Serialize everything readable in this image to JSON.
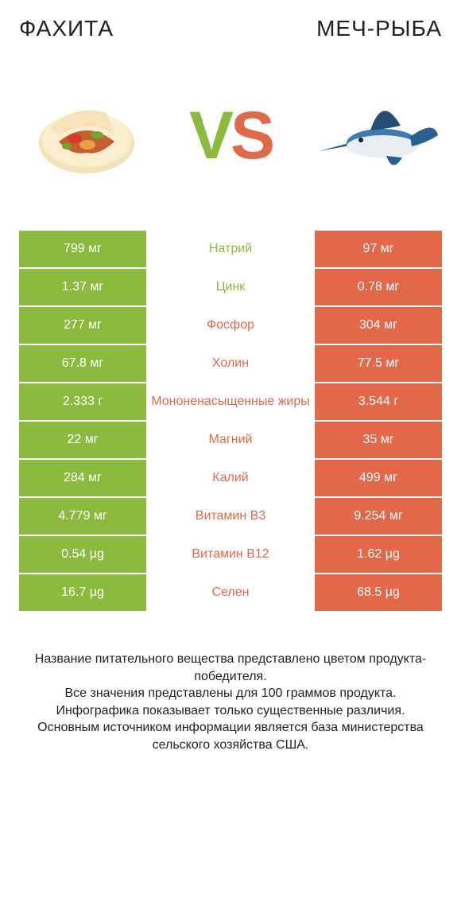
{
  "colors": {
    "left": "#8bba3f",
    "right": "#e2684a",
    "text": "#222222",
    "background": "#ffffff"
  },
  "header": {
    "left_title": "ФАХИТА",
    "right_title": "МЕЧ-РЫБА"
  },
  "vs": {
    "v": "V",
    "s": "S"
  },
  "rows": [
    {
      "label": "Натрий",
      "left": "799 мг",
      "right": "97 мг",
      "winner": "left"
    },
    {
      "label": "Цинк",
      "left": "1.37 мг",
      "right": "0.78 мг",
      "winner": "left"
    },
    {
      "label": "Фосфор",
      "left": "277 мг",
      "right": "304 мг",
      "winner": "right"
    },
    {
      "label": "Холин",
      "left": "67.8 мг",
      "right": "77.5 мг",
      "winner": "right"
    },
    {
      "label": "Мононенасыщенные жиры",
      "left": "2.333 г",
      "right": "3.544 г",
      "winner": "right"
    },
    {
      "label": "Магний",
      "left": "22 мг",
      "right": "35 мг",
      "winner": "right"
    },
    {
      "label": "Калий",
      "left": "284 мг",
      "right": "499 мг",
      "winner": "right"
    },
    {
      "label": "Витамин B3",
      "left": "4.779 мг",
      "right": "9.254 мг",
      "winner": "right"
    },
    {
      "label": "Витамин B12",
      "left": "0.54 µg",
      "right": "1.62 µg",
      "winner": "right"
    },
    {
      "label": "Селен",
      "left": "16.7 µg",
      "right": "68.5 µg",
      "winner": "right"
    }
  ],
  "footer": {
    "line1": "Название питательного вещества представлено цветом продукта-победителя.",
    "line2": "Все значения представлены для 100 граммов продукта.",
    "line3": "Инфографика показывает только существенные различия.",
    "line4": "Основным источником информации является база министерства сельского хозяйства США."
  }
}
